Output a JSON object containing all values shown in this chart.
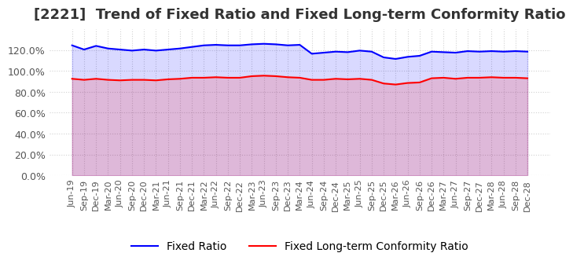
{
  "title": "[2221]  Trend of Fixed Ratio and Fixed Long-term Conformity Ratio",
  "title_fontsize": 13,
  "fixed_ratio": [
    124.5,
    120.5,
    124.0,
    121.5,
    120.5,
    119.5,
    120.5,
    119.5,
    120.5,
    121.5,
    123.0,
    124.5,
    125.0,
    124.5,
    124.5,
    125.5,
    126.0,
    125.5,
    124.5,
    125.0,
    116.5,
    117.5,
    118.5,
    118.0,
    119.5,
    118.5,
    113.0,
    111.5,
    113.5,
    114.5,
    118.5,
    118.0,
    117.5,
    119.0,
    118.5,
    119.0,
    118.5,
    119.0,
    118.5
  ],
  "fixed_lt_ratio": [
    92.5,
    91.5,
    92.5,
    91.5,
    91.0,
    91.5,
    91.5,
    91.0,
    92.0,
    92.5,
    93.5,
    93.5,
    94.0,
    93.5,
    93.5,
    95.0,
    95.5,
    95.0,
    94.0,
    93.5,
    91.5,
    91.5,
    92.5,
    92.0,
    92.5,
    91.5,
    88.0,
    87.0,
    88.5,
    89.0,
    93.0,
    93.5,
    92.5,
    93.5,
    93.5,
    94.0,
    93.5,
    93.5,
    93.0
  ],
  "x_labels": [
    "Jun-19",
    "Sep-19",
    "Dec-19",
    "Mar-20",
    "Jun-20",
    "Sep-20",
    "Dec-20",
    "Mar-21",
    "Jun-21",
    "Sep-21",
    "Dec-21",
    "Mar-22",
    "Jun-22",
    "Sep-22",
    "Dec-22",
    "Mar-23",
    "Jun-23",
    "Sep-23",
    "Dec-23",
    "Mar-24",
    "Jun-24",
    "Sep-24",
    "Dec-24",
    "Mar-25",
    "Jun-25",
    "Sep-25",
    "Dec-25",
    "Mar-26",
    "Jun-26",
    "Sep-26",
    "Dec-26",
    "Mar-27",
    "Jun-27",
    "Sep-27",
    "Dec-27",
    "Mar-28",
    "Jun-28",
    "Sep-28",
    "Dec-28"
  ],
  "fixed_ratio_color": "#0000ff",
  "fixed_lt_ratio_color": "#ff0000",
  "ylim": [
    0,
    140
  ],
  "yticks": [
    0,
    20,
    40,
    60,
    80,
    100,
    120
  ],
  "background_color": "#ffffff",
  "plot_bg_color": "#ffffff",
  "grid_color": "#cccccc",
  "line_width": 1.5,
  "legend_fontsize": 10,
  "tick_labels": [
    "Jun-19",
    "Sep-19",
    "Dec-19",
    "Mar-20",
    "Jun-20",
    "Sep-20",
    "Dec-20",
    "Mar-21",
    "Jun-21",
    "Sep-21",
    "Dec-21",
    "Mar-22",
    "Jun-22",
    "Sep-22",
    "Dec-22",
    "Mar-23",
    "Jun-23",
    "Sep-23",
    "Dec-23",
    "Mar-24",
    "Jun-24",
    "Sep-24"
  ]
}
